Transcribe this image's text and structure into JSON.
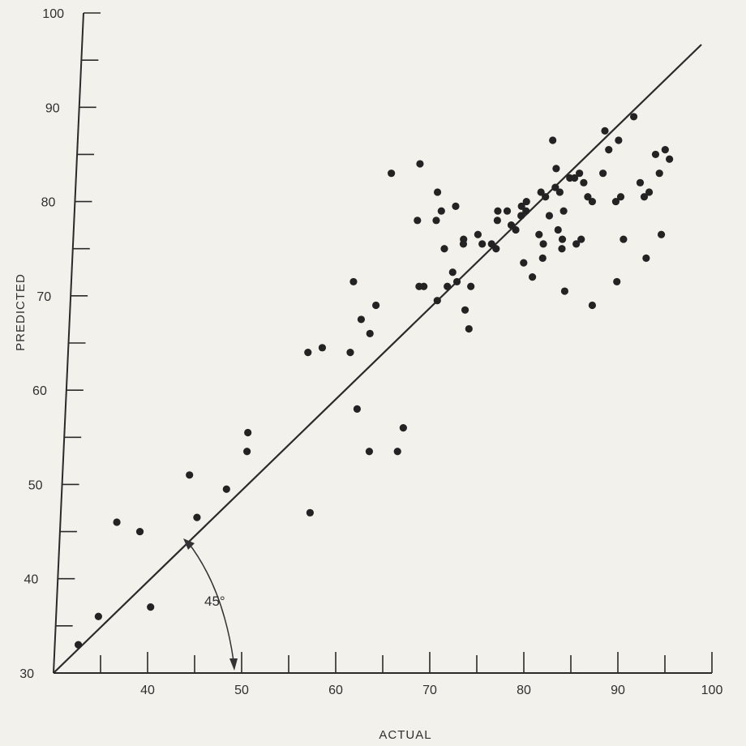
{
  "chart_data": {
    "type": "scatter",
    "xlabel": "ACTUAL",
    "ylabel": "PREDICTED",
    "xlim": [
      30,
      100
    ],
    "ylim": [
      30,
      100
    ],
    "x_major_ticks": [
      40,
      50,
      60,
      70,
      80,
      90,
      100
    ],
    "y_major_ticks": [
      30,
      40,
      50,
      60,
      70,
      80,
      90,
      100
    ],
    "x_tick_labels": [
      "40",
      "50",
      "60",
      "70",
      "80",
      "90",
      "100"
    ],
    "y_tick_labels": [
      "30",
      "40",
      "50",
      "60",
      "70",
      "80",
      "90",
      "100"
    ],
    "axis_origin_label": "30",
    "minor_tick_step": 5,
    "grid": false,
    "reference_line": {
      "slope": 1,
      "intercept": 0,
      "x_range": [
        30,
        100
      ]
    },
    "annotation": {
      "text": "45°",
      "type": "angle"
    },
    "points": [
      {
        "x": 32.5,
        "y": 33.0
      },
      {
        "x": 34.5,
        "y": 36.0
      },
      {
        "x": 36.0,
        "y": 46.0
      },
      {
        "x": 38.5,
        "y": 45.0
      },
      {
        "x": 40.0,
        "y": 37.0
      },
      {
        "x": 43.5,
        "y": 51.0
      },
      {
        "x": 44.5,
        "y": 46.5
      },
      {
        "x": 47.5,
        "y": 49.5
      },
      {
        "x": 49.5,
        "y": 53.5
      },
      {
        "x": 49.5,
        "y": 55.5
      },
      {
        "x": 55.5,
        "y": 64.0
      },
      {
        "x": 56.5,
        "y": 47.0
      },
      {
        "x": 57.0,
        "y": 64.5
      },
      {
        "x": 60.0,
        "y": 64.0
      },
      {
        "x": 60.0,
        "y": 71.5
      },
      {
        "x": 61.0,
        "y": 58.0
      },
      {
        "x": 61.0,
        "y": 67.5
      },
      {
        "x": 62.0,
        "y": 66.0
      },
      {
        "x": 62.5,
        "y": 69.0
      },
      {
        "x": 62.5,
        "y": 53.5
      },
      {
        "x": 63.5,
        "y": 83.0
      },
      {
        "x": 65.5,
        "y": 53.5
      },
      {
        "x": 66.0,
        "y": 56.0
      },
      {
        "x": 66.5,
        "y": 84.0
      },
      {
        "x": 66.5,
        "y": 78.0
      },
      {
        "x": 67.0,
        "y": 71.0
      },
      {
        "x": 67.5,
        "y": 71.0
      },
      {
        "x": 68.5,
        "y": 81.0
      },
      {
        "x": 68.5,
        "y": 78.0
      },
      {
        "x": 69.0,
        "y": 79.0
      },
      {
        "x": 69.0,
        "y": 69.5
      },
      {
        "x": 69.5,
        "y": 75.0
      },
      {
        "x": 70.0,
        "y": 71.0
      },
      {
        "x": 70.5,
        "y": 72.5
      },
      {
        "x": 70.5,
        "y": 79.5
      },
      {
        "x": 71.0,
        "y": 71.5
      },
      {
        "x": 71.5,
        "y": 76.0
      },
      {
        "x": 71.5,
        "y": 75.5
      },
      {
        "x": 72.0,
        "y": 68.5
      },
      {
        "x": 72.5,
        "y": 66.5
      },
      {
        "x": 72.5,
        "y": 71.0
      },
      {
        "x": 73.0,
        "y": 76.5
      },
      {
        "x": 73.5,
        "y": 75.5
      },
      {
        "x": 74.5,
        "y": 75.5
      },
      {
        "x": 75.0,
        "y": 75.0
      },
      {
        "x": 75.0,
        "y": 78.0
      },
      {
        "x": 75.0,
        "y": 79.0
      },
      {
        "x": 76.0,
        "y": 79.0
      },
      {
        "x": 76.5,
        "y": 77.5
      },
      {
        "x": 77.0,
        "y": 77.0
      },
      {
        "x": 77.5,
        "y": 78.5
      },
      {
        "x": 77.5,
        "y": 79.5
      },
      {
        "x": 78.0,
        "y": 80.0
      },
      {
        "x": 78.0,
        "y": 79.0
      },
      {
        "x": 78.0,
        "y": 73.5
      },
      {
        "x": 79.0,
        "y": 72.0
      },
      {
        "x": 79.5,
        "y": 76.5
      },
      {
        "x": 79.5,
        "y": 81.0
      },
      {
        "x": 80.0,
        "y": 80.5
      },
      {
        "x": 80.0,
        "y": 74.0
      },
      {
        "x": 80.0,
        "y": 75.5
      },
      {
        "x": 80.5,
        "y": 78.5
      },
      {
        "x": 80.5,
        "y": 86.5
      },
      {
        "x": 81.0,
        "y": 83.5
      },
      {
        "x": 81.0,
        "y": 81.5
      },
      {
        "x": 81.5,
        "y": 77.0
      },
      {
        "x": 81.5,
        "y": 81.0
      },
      {
        "x": 82.0,
        "y": 79.0
      },
      {
        "x": 82.0,
        "y": 76.0
      },
      {
        "x": 82.0,
        "y": 75.0
      },
      {
        "x": 82.5,
        "y": 70.5
      },
      {
        "x": 82.5,
        "y": 82.5
      },
      {
        "x": 83.0,
        "y": 82.5
      },
      {
        "x": 83.5,
        "y": 83.0
      },
      {
        "x": 83.5,
        "y": 75.5
      },
      {
        "x": 84.0,
        "y": 76.0
      },
      {
        "x": 84.0,
        "y": 82.0
      },
      {
        "x": 84.5,
        "y": 80.5
      },
      {
        "x": 85.0,
        "y": 80.0
      },
      {
        "x": 85.5,
        "y": 69.0
      },
      {
        "x": 86.0,
        "y": 87.5
      },
      {
        "x": 86.0,
        "y": 83.0
      },
      {
        "x": 86.5,
        "y": 85.5
      },
      {
        "x": 87.5,
        "y": 86.5
      },
      {
        "x": 87.5,
        "y": 80.0
      },
      {
        "x": 88.0,
        "y": 80.5
      },
      {
        "x": 88.0,
        "y": 71.5
      },
      {
        "x": 88.5,
        "y": 76.0
      },
      {
        "x": 89.0,
        "y": 89.0
      },
      {
        "x": 90.0,
        "y": 82.0
      },
      {
        "x": 90.5,
        "y": 80.5
      },
      {
        "x": 91.0,
        "y": 81.0
      },
      {
        "x": 91.0,
        "y": 74.0
      },
      {
        "x": 91.5,
        "y": 85.0
      },
      {
        "x": 92.0,
        "y": 83.0
      },
      {
        "x": 92.5,
        "y": 76.5
      },
      {
        "x": 92.5,
        "y": 85.5
      },
      {
        "x": 93.0,
        "y": 84.5
      }
    ]
  }
}
